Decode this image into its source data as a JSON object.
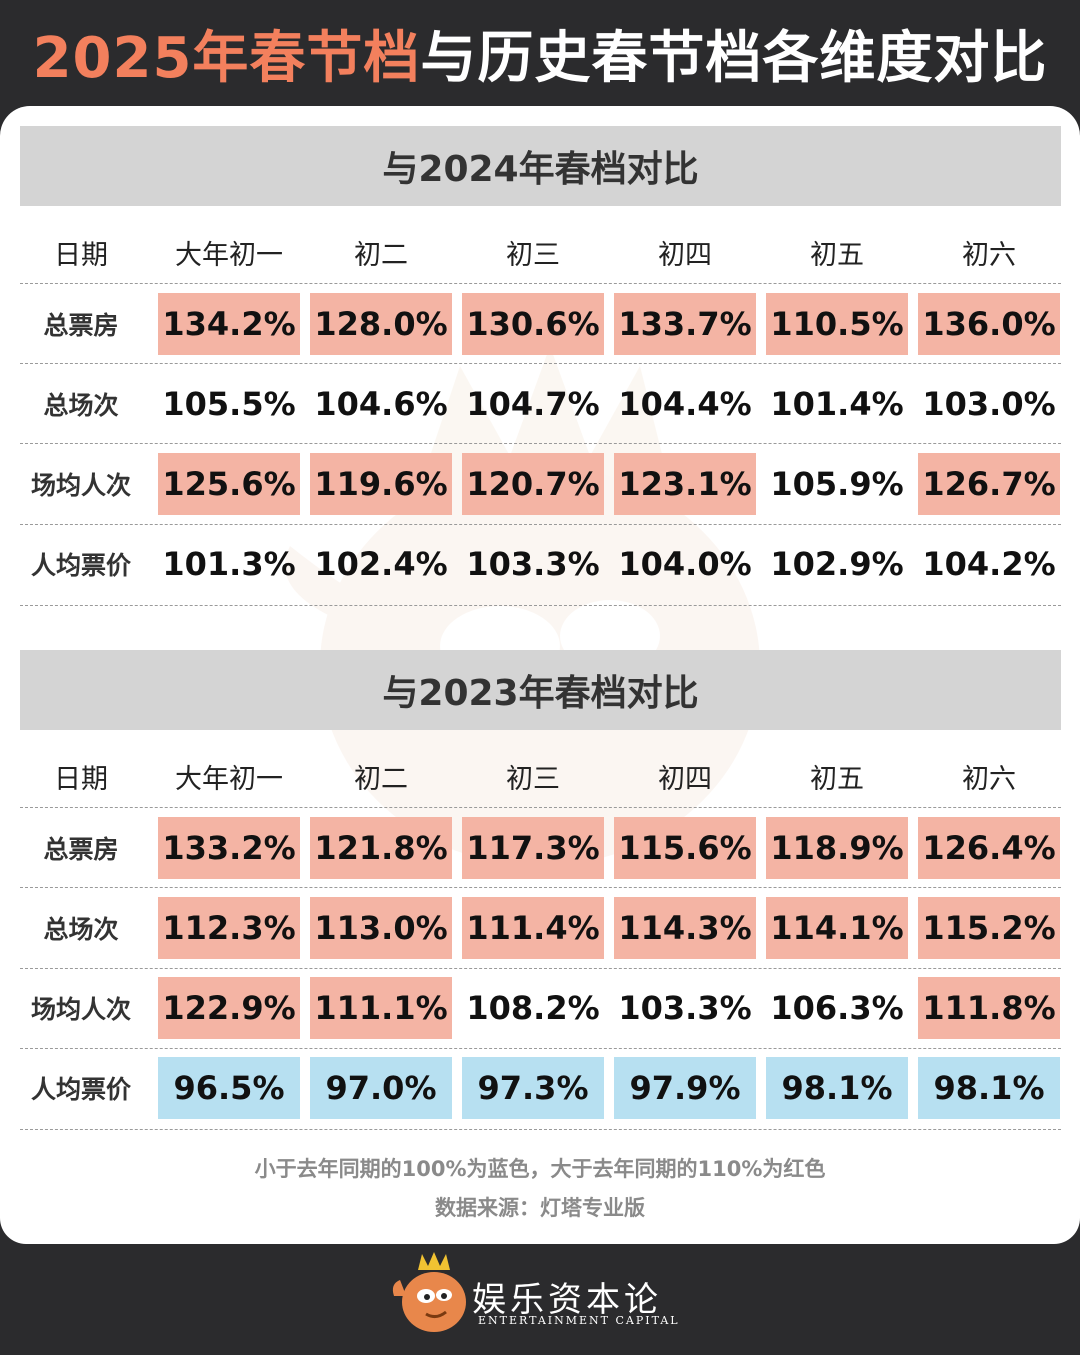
{
  "title": {
    "highlight": "2025年春节档",
    "rest": "与历史春节档各维度对比"
  },
  "columns_label": "日期",
  "columns": [
    "大年初一",
    "初二",
    "初三",
    "初四",
    "初五",
    "初六"
  ],
  "colors": {
    "red": "#f4b4a4",
    "blue": "#b7e0f1",
    "title_accent": "#f3805d"
  },
  "chart_data": [
    {
      "type": "table",
      "title": "与2024年春档对比",
      "columns": [
        "大年初一",
        "初二",
        "初三",
        "初四",
        "初五",
        "初六"
      ],
      "rows": [
        {
          "label": "总票房",
          "values": [
            "134.2%",
            "128.0%",
            "130.6%",
            "133.7%",
            "110.5%",
            "136.0%"
          ],
          "colors": [
            "red",
            "red",
            "red",
            "red",
            "red",
            "red"
          ]
        },
        {
          "label": "总场次",
          "values": [
            "105.5%",
            "104.6%",
            "104.7%",
            "104.4%",
            "101.4%",
            "103.0%"
          ],
          "colors": [
            "none",
            "none",
            "none",
            "none",
            "none",
            "none"
          ]
        },
        {
          "label": "场均人次",
          "values": [
            "125.6%",
            "119.6%",
            "120.7%",
            "123.1%",
            "105.9%",
            "126.7%"
          ],
          "colors": [
            "red",
            "red",
            "red",
            "red",
            "none",
            "red"
          ]
        },
        {
          "label": "人均票价",
          "values": [
            "101.3%",
            "102.4%",
            "103.3%",
            "104.0%",
            "102.9%",
            "104.2%"
          ],
          "colors": [
            "none",
            "none",
            "none",
            "none",
            "none",
            "none"
          ]
        }
      ]
    },
    {
      "type": "table",
      "title": "与2023年春档对比",
      "columns": [
        "大年初一",
        "初二",
        "初三",
        "初四",
        "初五",
        "初六"
      ],
      "rows": [
        {
          "label": "总票房",
          "values": [
            "133.2%",
            "121.8%",
            "117.3%",
            "115.6%",
            "118.9%",
            "126.4%"
          ],
          "colors": [
            "red",
            "red",
            "red",
            "red",
            "red",
            "red"
          ]
        },
        {
          "label": "总场次",
          "values": [
            "112.3%",
            "113.0%",
            "111.4%",
            "114.3%",
            "114.1%",
            "115.2%"
          ],
          "colors": [
            "red",
            "red",
            "red",
            "red",
            "red",
            "red"
          ]
        },
        {
          "label": "场均人次",
          "values": [
            "122.9%",
            "111.1%",
            "108.2%",
            "103.3%",
            "106.3%",
            "111.8%"
          ],
          "colors": [
            "red",
            "red",
            "none",
            "none",
            "none",
            "red"
          ]
        },
        {
          "label": "人均票价",
          "values": [
            "96.5%",
            "97.0%",
            "97.3%",
            "97.9%",
            "98.1%",
            "98.1%"
          ],
          "colors": [
            "blue",
            "blue",
            "blue",
            "blue",
            "blue",
            "blue"
          ]
        }
      ]
    }
  ],
  "footnote": {
    "legend": "小于去年同期的100%为蓝色，大于去年同期的110%为红色",
    "source": "数据来源：灯塔专业版"
  },
  "brand": {
    "name": "娱乐资本论",
    "subtitle": "ENTERTAINMENT CAPITAL",
    "logo_icon": "fish-king-mascot-icon"
  }
}
